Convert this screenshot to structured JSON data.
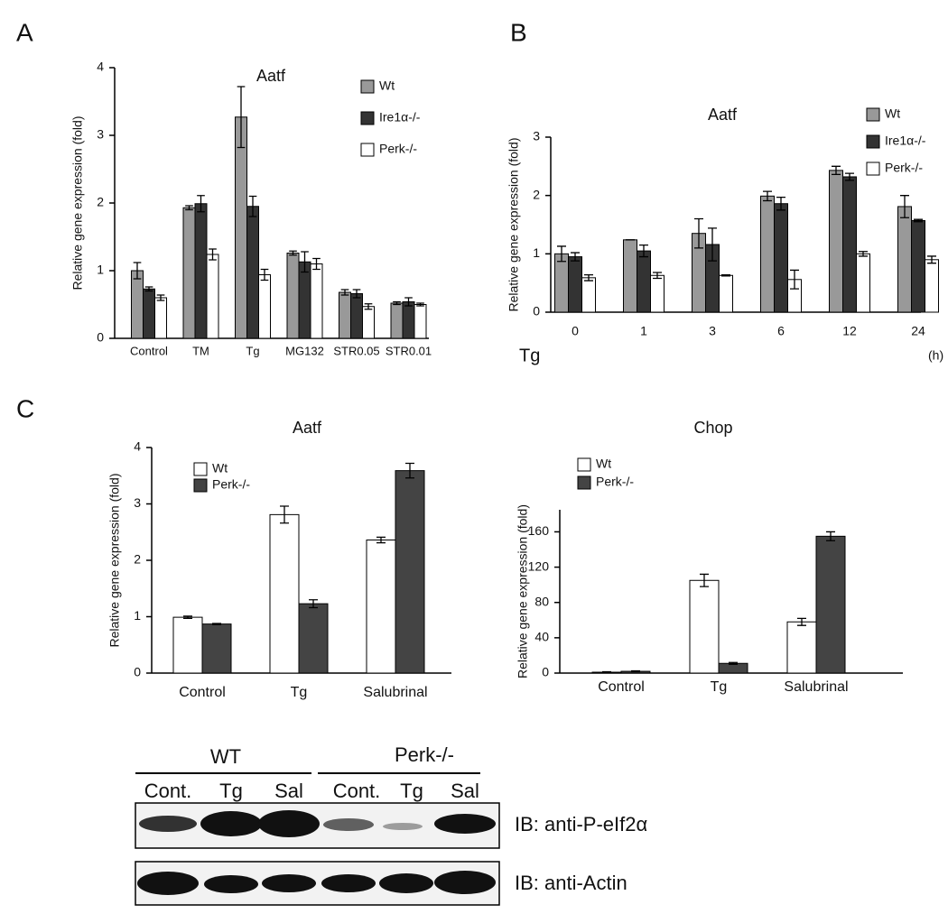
{
  "panels": [
    "A",
    "B",
    "C"
  ],
  "chart_data": [
    {
      "type": "bar",
      "title": "Aatf",
      "ylabel": "Relative gene expression (fold)",
      "categories": [
        "Control",
        "TM",
        "Tg",
        "MG132",
        "STR0.05",
        "STR0.01"
      ],
      "series": [
        {
          "name": "Wt",
          "color": "#999999",
          "values": [
            1.0,
            1.93,
            3.27,
            1.26,
            0.68,
            0.52
          ],
          "errors": [
            0.12,
            0.03,
            0.45,
            0.03,
            0.04,
            0.02
          ]
        },
        {
          "name": "Ire1α-/-",
          "color": "#333333",
          "values": [
            0.73,
            1.99,
            1.95,
            1.13,
            0.66,
            0.54
          ],
          "errors": [
            0.03,
            0.12,
            0.15,
            0.15,
            0.06,
            0.06
          ]
        },
        {
          "name": "Perk-/-",
          "color": "#ffffff",
          "values": [
            0.6,
            1.24,
            0.94,
            1.1,
            0.47,
            0.5
          ],
          "errors": [
            0.04,
            0.08,
            0.08,
            0.08,
            0.04,
            0.02
          ]
        }
      ],
      "ylim": [
        0,
        4
      ],
      "yticks": [
        0,
        1,
        2,
        3,
        4
      ]
    },
    {
      "type": "bar",
      "title": "Aatf",
      "ylabel": "Relative gene expression (fold)",
      "xlabel": "Tg",
      "xunit": "(h)",
      "categories": [
        "0",
        "1",
        "3",
        "6",
        "12",
        "24"
      ],
      "series": [
        {
          "name": "Wt",
          "color": "#999999",
          "values": [
            1.0,
            1.24,
            1.35,
            1.99,
            2.43,
            1.81
          ],
          "errors": [
            0.13,
            0,
            0.25,
            0.08,
            0.07,
            0.19
          ]
        },
        {
          "name": "Ire1α-/-",
          "color": "#333333",
          "values": [
            0.95,
            1.05,
            1.16,
            1.86,
            2.32,
            1.57
          ],
          "errors": [
            0.07,
            0.1,
            0.28,
            0.11,
            0.06,
            0.02
          ]
        },
        {
          "name": "Perk-/-",
          "color": "#ffffff",
          "values": [
            0.59,
            0.63,
            0.63,
            0.56,
            1.0,
            0.9
          ],
          "errors": [
            0.05,
            0.05,
            0.01,
            0.16,
            0.04,
            0.06
          ]
        }
      ],
      "ylim": [
        0,
        3
      ],
      "yticks": [
        0,
        1,
        2,
        3
      ]
    },
    {
      "type": "bar",
      "title": "Aatf",
      "ylabel": "Relative gene expression (fold)",
      "categories": [
        "Control",
        "Tg",
        "Salubrinal"
      ],
      "series": [
        {
          "name": "Wt",
          "color": "#ffffff",
          "values": [
            0.99,
            2.81,
            2.36
          ],
          "errors": [
            0.02,
            0.15,
            0.05
          ]
        },
        {
          "name": "Perk-/-",
          "color": "#444444",
          "values": [
            0.87,
            1.23,
            3.59
          ],
          "errors": [
            0.01,
            0.07,
            0.13
          ]
        }
      ],
      "ylim": [
        0,
        4
      ],
      "yticks": [
        0,
        1,
        2,
        3,
        4
      ]
    },
    {
      "type": "bar",
      "title": "Chop",
      "ylabel": "Relative gene expression (fold)",
      "categories": [
        "Control",
        "Tg",
        "Salubrinal"
      ],
      "series": [
        {
          "name": "Wt",
          "color": "#ffffff",
          "values": [
            1,
            105,
            58
          ],
          "errors": [
            0.5,
            7,
            4
          ]
        },
        {
          "name": "Perk-/-",
          "color": "#444444",
          "values": [
            2,
            11,
            155
          ],
          "errors": [
            0.5,
            1,
            5
          ]
        }
      ],
      "ylim": [
        0,
        185
      ],
      "yticks": [
        0,
        40,
        80,
        120,
        160
      ]
    }
  ],
  "blot": {
    "groups": [
      "WT",
      "Perk-/-"
    ],
    "lanes": [
      "Cont.",
      "Tg",
      "Sal",
      "Cont.",
      "Tg",
      "Sal"
    ],
    "rows": [
      "IB: anti-P-eIf2α",
      "IB: anti-Actin"
    ]
  }
}
